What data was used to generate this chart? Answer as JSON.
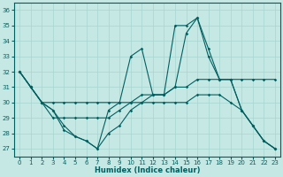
{
  "xlabel": "Humidex (Indice chaleur)",
  "xlim": [
    -0.5,
    23.5
  ],
  "ylim": [
    26.5,
    36.5
  ],
  "yticks": [
    27,
    28,
    29,
    30,
    31,
    32,
    33,
    34,
    35,
    36
  ],
  "xticks": [
    0,
    1,
    2,
    3,
    4,
    5,
    6,
    7,
    8,
    9,
    10,
    11,
    12,
    13,
    14,
    15,
    16,
    17,
    18,
    19,
    20,
    21,
    22,
    23
  ],
  "background_color": "#c5e8e5",
  "grid_color": "#a8d4d0",
  "line_color": "#006060",
  "lines": [
    {
      "x": [
        0,
        1,
        2,
        3,
        4,
        5,
        6,
        7,
        8,
        9,
        10,
        11,
        12,
        13,
        14,
        15,
        16,
        17,
        18,
        19,
        20,
        21,
        22,
        23
      ],
      "y": [
        32,
        31,
        30,
        29.5,
        28.2,
        27.8,
        27.5,
        27.0,
        29.5,
        30.0,
        33.0,
        33.5,
        30.5,
        30.5,
        35.0,
        35.0,
        35.5,
        33.5,
        31.5,
        31.5,
        29.5,
        28.5,
        27.5,
        27.0
      ]
    },
    {
      "x": [
        0,
        1,
        2,
        3,
        4,
        5,
        6,
        7,
        8,
        9,
        10,
        11,
        12,
        13,
        14,
        15,
        16,
        17,
        18,
        19,
        20,
        21,
        22,
        23
      ],
      "y": [
        32,
        31,
        30.0,
        30.0,
        30.0,
        30.0,
        30.0,
        30.0,
        30.0,
        30.0,
        30.0,
        30.5,
        30.5,
        30.5,
        31.0,
        31.0,
        31.5,
        31.5,
        31.5,
        31.5,
        31.5,
        31.5,
        31.5,
        31.5
      ]
    },
    {
      "x": [
        0,
        1,
        2,
        3,
        4,
        5,
        6,
        7,
        8,
        9,
        10,
        11,
        12,
        13,
        14,
        15,
        16,
        17,
        18,
        19,
        20,
        21,
        22,
        23
      ],
      "y": [
        32,
        31,
        30,
        29.5,
        28.5,
        27.8,
        27.5,
        27.0,
        28.0,
        28.5,
        29.5,
        30.0,
        30.0,
        30.0,
        30.0,
        30.0,
        30.5,
        30.5,
        30.5,
        30.0,
        29.5,
        28.5,
        27.5,
        27.0
      ]
    },
    {
      "x": [
        0,
        1,
        2,
        3,
        4,
        5,
        6,
        7,
        8,
        9,
        10,
        11,
        12,
        13,
        14,
        15,
        16,
        17,
        18,
        19,
        20,
        21,
        22,
        23
      ],
      "y": [
        32,
        31,
        30,
        29.0,
        29.0,
        29.0,
        29.0,
        29.0,
        29.0,
        29.5,
        30.0,
        30.0,
        30.5,
        30.5,
        31.0,
        34.5,
        35.5,
        33.0,
        31.5,
        31.5,
        29.5,
        28.5,
        27.5,
        27.0
      ]
    }
  ]
}
